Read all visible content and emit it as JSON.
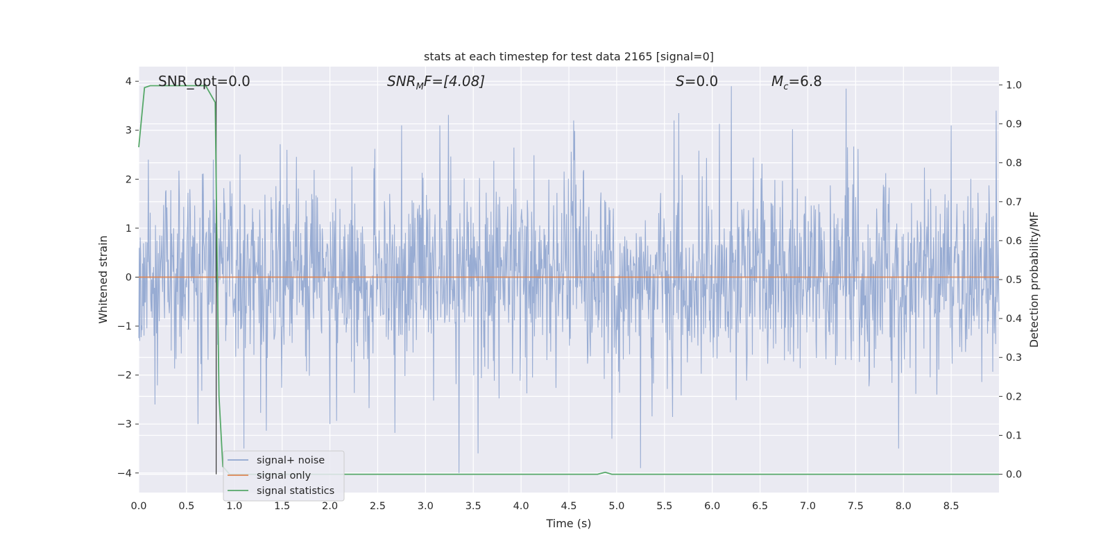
{
  "chart_data": {
    "type": "line",
    "title": "stats at each timestep for test data 2165 [signal=0]",
    "xlabel": "Time (s)",
    "ylabel": "Whitened strain",
    "y2label": "Detection probability/MF",
    "xlim": [
      0.0,
      9.0
    ],
    "ylim": [
      -4.4,
      4.3
    ],
    "y2lim": [
      -0.047,
      1.047
    ],
    "xticks": [
      "0.0",
      "0.5",
      "1.0",
      "1.5",
      "2.0",
      "2.5",
      "3.0",
      "3.5",
      "4.0",
      "4.5",
      "5.0",
      "5.5",
      "6.0",
      "6.5",
      "7.0",
      "7.5",
      "8.0",
      "8.5"
    ],
    "yticks": [
      "4",
      "3",
      "2",
      "1",
      "0",
      "−1",
      "−2",
      "−3",
      "−4"
    ],
    "y2ticks": [
      "1.0",
      "0.9",
      "0.8",
      "0.7",
      "0.6",
      "0.5",
      "0.4",
      "0.3",
      "0.2",
      "0.1",
      "0.0"
    ],
    "grid": true,
    "background": "#eaeaf2",
    "annotations": {
      "snr_opt": "SNR_opt=0.0",
      "snr_mf_sym": "SNR",
      "snr_mf_sub": "M",
      "snr_mf_rest": "F=[4.08]",
      "s_sym": "S",
      "s_rest": "=0.0",
      "mc_sym": "M",
      "mc_sub": "c",
      "mc_rest": "=6.8"
    },
    "marker_line_x": 0.81,
    "legend": {
      "placement": "lower-left",
      "entries": [
        "signal+ noise",
        "signal only",
        "signal statistics"
      ]
    },
    "series": [
      {
        "name": "signal+ noise",
        "axis": "left",
        "color": "#8fa5cf",
        "description_values": "white noise, typical amplitude ~1.5, peaks to ~3.9 / -3.9",
        "seed": 2165,
        "dt": 0.005,
        "spikes": [
          [
            0.1,
            2.4
          ],
          [
            0.17,
            -2.6
          ],
          [
            0.62,
            -3.0
          ],
          [
            0.78,
            2.4
          ],
          [
            1.1,
            -3.5
          ],
          [
            1.55,
            2.6
          ],
          [
            2.0,
            -3.0
          ],
          [
            2.75,
            3.1
          ],
          [
            3.15,
            3.1
          ],
          [
            3.35,
            -4.0
          ],
          [
            3.55,
            -3.6
          ],
          [
            4.55,
            3.2
          ],
          [
            4.95,
            -3.3
          ],
          [
            5.25,
            -3.9
          ],
          [
            5.6,
            3.2
          ],
          [
            5.65,
            3.35
          ],
          [
            6.2,
            3.9
          ],
          [
            7.4,
            3.85
          ],
          [
            7.95,
            -3.5
          ],
          [
            8.5,
            3.1
          ]
        ]
      },
      {
        "name": "signal only",
        "axis": "left",
        "color": "#dd8452",
        "values_note": "zero everywhere",
        "x": [
          0.0,
          9.0
        ],
        "y": [
          0.0,
          0.0
        ]
      },
      {
        "name": "signal statistics",
        "axis": "right",
        "color": "#55a868",
        "x": [
          0.0,
          0.06,
          0.12,
          0.2,
          0.5,
          0.7,
          0.8,
          0.82,
          0.84,
          0.88,
          0.95,
          1.0,
          2.0,
          3.0,
          4.0,
          4.7,
          4.8,
          4.88,
          4.95,
          5.0,
          6.0,
          7.0,
          8.0,
          9.0
        ],
        "y": [
          0.84,
          0.993,
          0.998,
          0.998,
          0.998,
          0.998,
          0.955,
          0.55,
          0.2,
          0.02,
          0.0,
          0.0,
          0.0,
          0.0,
          0.0,
          0.0,
          0.0,
          0.005,
          0.0,
          0.0,
          0.0,
          0.0,
          0.0,
          0.0
        ]
      }
    ]
  }
}
